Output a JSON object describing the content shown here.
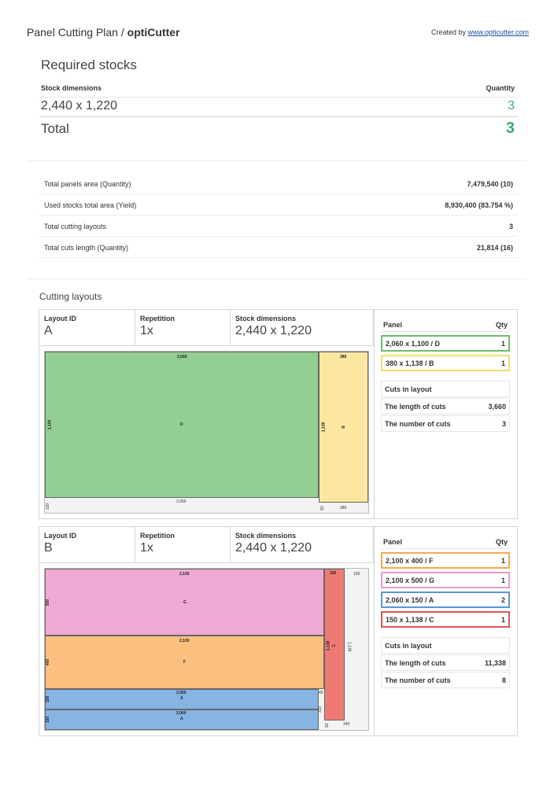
{
  "header": {
    "title_prefix": "Panel Cutting Plan / ",
    "title_brand": "optiCutter",
    "created_by_label": "Created by ",
    "created_by_link": "www.opticutter.com"
  },
  "required_stocks": {
    "title": "Required stocks",
    "col_dimensions": "Stock dimensions",
    "col_quantity": "Quantity",
    "rows": [
      {
        "dimensions": "2,440 x 1,220",
        "quantity": "3"
      }
    ],
    "total_label": "Total",
    "total_quantity": "3"
  },
  "summary": [
    {
      "label": "Total panels area (Quantity)",
      "value": "7,479,540 (10)"
    },
    {
      "label": "Used stocks total area (Yield)",
      "value": "8,930,400 (83.754 %)"
    },
    {
      "label": "Total cutting layouts",
      "value": "3"
    },
    {
      "label": "Total cuts length (Quantity)",
      "value": "21,814 (16)"
    }
  ],
  "cutting_layouts_title": "Cutting layouts",
  "labels": {
    "layout_id": "Layout ID",
    "repetition": "Repetition",
    "stock_dimensions": "Stock dimensions",
    "panel": "Panel",
    "qty": "Qty",
    "cuts_in_layout": "Cuts in layout",
    "length_of_cuts": "The length of cuts",
    "number_of_cuts": "The number of cuts"
  },
  "layouts": [
    {
      "id": "A",
      "repetition": "1x",
      "stock_dimensions": "2,440 x 1,220",
      "panels": [
        {
          "name": "2,060 x 1,100 / D",
          "qty": "1",
          "color": "#6dbd6f"
        },
        {
          "name": "380 x 1,138 / B",
          "qty": "1",
          "color": "#f3dc72"
        }
      ],
      "length_of_cuts": "3,660",
      "number_of_cuts": "3",
      "drawing": {
        "D_top": "2,060",
        "D_side": "1,100",
        "D_label": "D",
        "B_top": "380",
        "B_side": "1,138",
        "B_label": "B",
        "waste_bottom_left": "120",
        "waste_bottom": "2,060",
        "waste_b_left": "82",
        "waste_b": "380"
      }
    },
    {
      "id": "B",
      "repetition": "1x",
      "stock_dimensions": "2,440 x 1,220",
      "panels": [
        {
          "name": "2,100 x 400 / F",
          "qty": "1",
          "color": "#f5a94e"
        },
        {
          "name": "2,100 x 500 / G",
          "qty": "1",
          "color": "#e59ad0"
        },
        {
          "name": "2,060 x 150 / A",
          "qty": "2",
          "color": "#5b95d6"
        },
        {
          "name": "150 x 1,138 / C",
          "qty": "1",
          "color": "#e0554f"
        }
      ],
      "length_of_cuts": "11,338",
      "number_of_cuts": "8",
      "drawing": {
        "G_top": "2,100",
        "G_side": "500",
        "G_label": "G",
        "F_top": "2,100",
        "F_side": "400",
        "F_label": "F",
        "A1_top": "2,060",
        "A1_side": "150",
        "A1_label": "A",
        "A2_top": "2,060",
        "A2_side": "150",
        "A2_label": "A",
        "C_top": "150",
        "C_side": "1,138",
        "C_label": "C",
        "waste_top_right": "190",
        "waste_right_side": "1,138",
        "gap_small1": "40",
        "gap_small2": "310",
        "waste_c_left": "82",
        "waste_c": "340"
      }
    }
  ]
}
